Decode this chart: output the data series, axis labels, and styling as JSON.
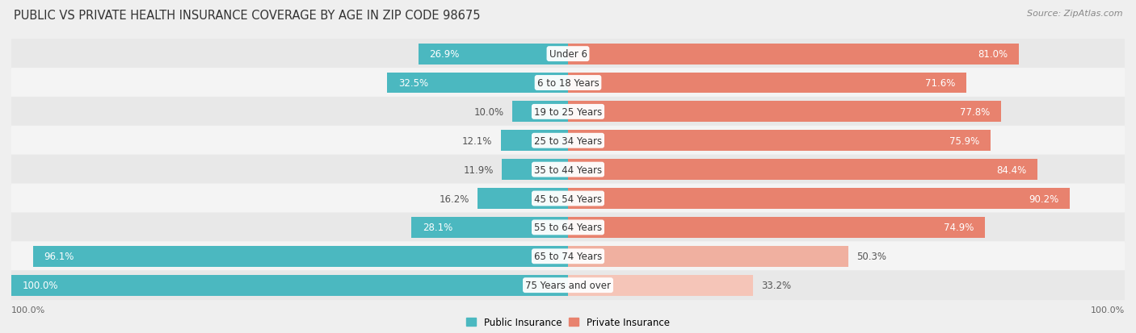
{
  "title": "PUBLIC VS PRIVATE HEALTH INSURANCE COVERAGE BY AGE IN ZIP CODE 98675",
  "source": "Source: ZipAtlas.com",
  "categories": [
    "Under 6",
    "6 to 18 Years",
    "19 to 25 Years",
    "25 to 34 Years",
    "35 to 44 Years",
    "45 to 54 Years",
    "55 to 64 Years",
    "65 to 74 Years",
    "75 Years and over"
  ],
  "public_values": [
    26.9,
    32.5,
    10.0,
    12.1,
    11.9,
    16.2,
    28.1,
    96.1,
    100.0
  ],
  "private_values": [
    81.0,
    71.6,
    77.8,
    75.9,
    84.4,
    90.2,
    74.9,
    50.3,
    33.2
  ],
  "private_colors": [
    "#E8826E",
    "#E8826E",
    "#E8826E",
    "#E8826E",
    "#E8826E",
    "#E8826E",
    "#E8826E",
    "#F0B0A0",
    "#F5C5B8"
  ],
  "public_color": "#4BB8C0",
  "bg_color": "#EFEFEF",
  "row_bg_even": "#E8E8E8",
  "row_bg_odd": "#F4F4F4",
  "white": "#FFFFFF",
  "dark_label": "#555555",
  "title_fontsize": 10.5,
  "source_fontsize": 8,
  "bar_label_fontsize": 8.5,
  "category_fontsize": 8.5,
  "legend_fontsize": 8.5,
  "axis_label_fontsize": 8
}
